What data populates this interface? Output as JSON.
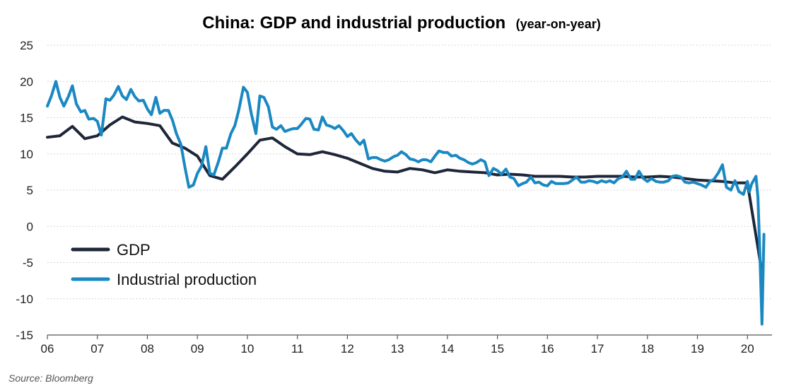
{
  "chart_data": {
    "type": "line",
    "title": "China: GDP and industrial production",
    "subtitle": "(year-on-year)",
    "source": "Source: Bloomberg",
    "xlim": [
      2006,
      2020.35
    ],
    "ylim": [
      -15,
      25
    ],
    "y_ticks": [
      25,
      20,
      15,
      10,
      5,
      0,
      -5,
      -10,
      -15
    ],
    "x_ticks": [
      {
        "label": "06",
        "value": 2006
      },
      {
        "label": "07",
        "value": 2007
      },
      {
        "label": "08",
        "value": 2008
      },
      {
        "label": "09",
        "value": 2009
      },
      {
        "label": "10",
        "value": 2010
      },
      {
        "label": "11",
        "value": 2011
      },
      {
        "label": "12",
        "value": 2012
      },
      {
        "label": "13",
        "value": 2013
      },
      {
        "label": "14",
        "value": 2014
      },
      {
        "label": "15",
        "value": 2015
      },
      {
        "label": "16",
        "value": 2016
      },
      {
        "label": "17",
        "value": 2017
      },
      {
        "label": "18",
        "value": 2018
      },
      {
        "label": "19",
        "value": 2019
      },
      {
        "label": "20",
        "value": 2020
      }
    ],
    "grid": "horizontal dotted",
    "legend_position": "bottom-left",
    "series": [
      {
        "name": "GDP",
        "color": "#1e2639",
        "points": [
          [
            2006.0,
            12.3
          ],
          [
            2006.25,
            12.5
          ],
          [
            2006.5,
            13.8
          ],
          [
            2006.75,
            12.1
          ],
          [
            2007.0,
            12.5
          ],
          [
            2007.25,
            14.0
          ],
          [
            2007.5,
            15.1
          ],
          [
            2007.75,
            14.4
          ],
          [
            2008.0,
            14.2
          ],
          [
            2008.25,
            13.9
          ],
          [
            2008.5,
            11.5
          ],
          [
            2008.75,
            10.8
          ],
          [
            2009.0,
            9.7
          ],
          [
            2009.25,
            7.0
          ],
          [
            2009.5,
            6.5
          ],
          [
            2009.75,
            8.2
          ],
          [
            2010.0,
            10.0
          ],
          [
            2010.25,
            11.9
          ],
          [
            2010.5,
            12.2
          ],
          [
            2010.75,
            11.0
          ],
          [
            2011.0,
            10.0
          ],
          [
            2011.25,
            9.9
          ],
          [
            2011.5,
            10.3
          ],
          [
            2011.75,
            9.9
          ],
          [
            2012.0,
            9.4
          ],
          [
            2012.25,
            8.7
          ],
          [
            2012.5,
            8.0
          ],
          [
            2012.75,
            7.6
          ],
          [
            2013.0,
            7.5
          ],
          [
            2013.25,
            8.0
          ],
          [
            2013.5,
            7.8
          ],
          [
            2013.75,
            7.4
          ],
          [
            2014.0,
            7.8
          ],
          [
            2014.25,
            7.6
          ],
          [
            2014.5,
            7.5
          ],
          [
            2014.75,
            7.4
          ],
          [
            2015.0,
            7.1
          ],
          [
            2015.25,
            7.2
          ],
          [
            2015.5,
            7.1
          ],
          [
            2015.75,
            6.9
          ],
          [
            2016.0,
            6.9
          ],
          [
            2016.25,
            6.9
          ],
          [
            2016.5,
            6.8
          ],
          [
            2016.75,
            6.8
          ],
          [
            2017.0,
            6.9
          ],
          [
            2017.25,
            6.9
          ],
          [
            2017.5,
            6.9
          ],
          [
            2017.75,
            6.8
          ],
          [
            2018.0,
            6.8
          ],
          [
            2018.25,
            6.9
          ],
          [
            2018.5,
            6.8
          ],
          [
            2018.75,
            6.6
          ],
          [
            2019.0,
            6.4
          ],
          [
            2019.25,
            6.3
          ],
          [
            2019.5,
            6.2
          ],
          [
            2019.75,
            6.0
          ],
          [
            2020.0,
            6.0
          ],
          [
            2020.3,
            -6.8
          ]
        ]
      },
      {
        "name": "Industrial production",
        "color": "#1a88c2",
        "points": [
          [
            2006.0,
            16.6
          ],
          [
            2006.08,
            18.0
          ],
          [
            2006.17,
            20.0
          ],
          [
            2006.25,
            17.8
          ],
          [
            2006.33,
            16.6
          ],
          [
            2006.42,
            17.9
          ],
          [
            2006.5,
            19.4
          ],
          [
            2006.58,
            16.9
          ],
          [
            2006.67,
            15.8
          ],
          [
            2006.75,
            16.0
          ],
          [
            2006.83,
            14.8
          ],
          [
            2006.92,
            14.9
          ],
          [
            2007.0,
            14.5
          ],
          [
            2007.08,
            12.6
          ],
          [
            2007.17,
            17.6
          ],
          [
            2007.25,
            17.4
          ],
          [
            2007.33,
            18.1
          ],
          [
            2007.42,
            19.3
          ],
          [
            2007.5,
            18.0
          ],
          [
            2007.58,
            17.5
          ],
          [
            2007.67,
            18.9
          ],
          [
            2007.75,
            17.9
          ],
          [
            2007.83,
            17.3
          ],
          [
            2007.92,
            17.4
          ],
          [
            2008.0,
            16.2
          ],
          [
            2008.08,
            15.4
          ],
          [
            2008.17,
            17.8
          ],
          [
            2008.25,
            15.6
          ],
          [
            2008.33,
            16.0
          ],
          [
            2008.42,
            16.0
          ],
          [
            2008.5,
            14.7
          ],
          [
            2008.58,
            12.8
          ],
          [
            2008.67,
            11.3
          ],
          [
            2008.75,
            8.2
          ],
          [
            2008.83,
            5.4
          ],
          [
            2008.92,
            5.7
          ],
          [
            2009.0,
            7.3
          ],
          [
            2009.08,
            8.3
          ],
          [
            2009.17,
            11.0
          ],
          [
            2009.25,
            7.3
          ],
          [
            2009.33,
            7.1
          ],
          [
            2009.42,
            8.9
          ],
          [
            2009.5,
            10.8
          ],
          [
            2009.58,
            10.8
          ],
          [
            2009.67,
            12.8
          ],
          [
            2009.75,
            13.9
          ],
          [
            2009.83,
            16.1
          ],
          [
            2009.92,
            19.2
          ],
          [
            2010.0,
            18.5
          ],
          [
            2010.08,
            15.5
          ],
          [
            2010.17,
            12.8
          ],
          [
            2010.25,
            18.0
          ],
          [
            2010.33,
            17.8
          ],
          [
            2010.42,
            16.5
          ],
          [
            2010.5,
            13.7
          ],
          [
            2010.58,
            13.4
          ],
          [
            2010.67,
            13.9
          ],
          [
            2010.75,
            13.1
          ],
          [
            2010.83,
            13.3
          ],
          [
            2010.92,
            13.5
          ],
          [
            2011.0,
            13.5
          ],
          [
            2011.08,
            14.1
          ],
          [
            2011.17,
            14.9
          ],
          [
            2011.25,
            14.8
          ],
          [
            2011.33,
            13.4
          ],
          [
            2011.42,
            13.3
          ],
          [
            2011.5,
            15.1
          ],
          [
            2011.58,
            14.0
          ],
          [
            2011.67,
            13.8
          ],
          [
            2011.75,
            13.5
          ],
          [
            2011.83,
            13.9
          ],
          [
            2011.92,
            13.2
          ],
          [
            2012.0,
            12.4
          ],
          [
            2012.08,
            12.8
          ],
          [
            2012.17,
            11.9
          ],
          [
            2012.25,
            11.3
          ],
          [
            2012.33,
            11.9
          ],
          [
            2012.42,
            9.3
          ],
          [
            2012.5,
            9.5
          ],
          [
            2012.58,
            9.5
          ],
          [
            2012.67,
            9.2
          ],
          [
            2012.75,
            9.0
          ],
          [
            2012.83,
            9.2
          ],
          [
            2012.92,
            9.6
          ],
          [
            2013.0,
            9.8
          ],
          [
            2013.08,
            10.3
          ],
          [
            2013.17,
            9.9
          ],
          [
            2013.25,
            9.3
          ],
          [
            2013.33,
            9.2
          ],
          [
            2013.42,
            8.9
          ],
          [
            2013.5,
            9.2
          ],
          [
            2013.58,
            9.2
          ],
          [
            2013.67,
            8.9
          ],
          [
            2013.75,
            9.7
          ],
          [
            2013.83,
            10.4
          ],
          [
            2013.92,
            10.2
          ],
          [
            2014.0,
            10.2
          ],
          [
            2014.08,
            9.7
          ],
          [
            2014.17,
            9.8
          ],
          [
            2014.25,
            9.4
          ],
          [
            2014.33,
            9.2
          ],
          [
            2014.42,
            8.8
          ],
          [
            2014.5,
            8.6
          ],
          [
            2014.58,
            8.8
          ],
          [
            2014.67,
            9.2
          ],
          [
            2014.75,
            8.9
          ],
          [
            2014.83,
            7.0
          ],
          [
            2014.92,
            8.0
          ],
          [
            2015.0,
            7.7
          ],
          [
            2015.08,
            7.2
          ],
          [
            2015.17,
            7.9
          ],
          [
            2015.25,
            6.8
          ],
          [
            2015.33,
            6.6
          ],
          [
            2015.42,
            5.6
          ],
          [
            2015.5,
            5.9
          ],
          [
            2015.58,
            6.1
          ],
          [
            2015.67,
            6.8
          ],
          [
            2015.75,
            6.0
          ],
          [
            2015.83,
            6.1
          ],
          [
            2015.92,
            5.7
          ],
          [
            2016.0,
            5.6
          ],
          [
            2016.08,
            6.2
          ],
          [
            2016.17,
            5.9
          ],
          [
            2016.25,
            5.9
          ],
          [
            2016.33,
            5.9
          ],
          [
            2016.42,
            6.0
          ],
          [
            2016.5,
            6.4
          ],
          [
            2016.58,
            6.8
          ],
          [
            2016.67,
            6.1
          ],
          [
            2016.75,
            6.1
          ],
          [
            2016.83,
            6.3
          ],
          [
            2016.92,
            6.2
          ],
          [
            2017.0,
            6.0
          ],
          [
            2017.08,
            6.3
          ],
          [
            2017.17,
            6.1
          ],
          [
            2017.25,
            6.3
          ],
          [
            2017.33,
            6.0
          ],
          [
            2017.42,
            6.6
          ],
          [
            2017.5,
            6.8
          ],
          [
            2017.58,
            7.6
          ],
          [
            2017.67,
            6.5
          ],
          [
            2017.75,
            6.5
          ],
          [
            2017.83,
            7.6
          ],
          [
            2017.92,
            6.6
          ],
          [
            2018.0,
            6.2
          ],
          [
            2018.08,
            6.6
          ],
          [
            2018.17,
            6.2
          ],
          [
            2018.25,
            6.1
          ],
          [
            2018.33,
            6.1
          ],
          [
            2018.42,
            6.3
          ],
          [
            2018.5,
            6.9
          ],
          [
            2018.58,
            7.0
          ],
          [
            2018.67,
            6.8
          ],
          [
            2018.75,
            6.1
          ],
          [
            2018.83,
            6.0
          ],
          [
            2018.92,
            6.1
          ],
          [
            2019.0,
            5.9
          ],
          [
            2019.08,
            5.7
          ],
          [
            2019.17,
            5.4
          ],
          [
            2019.25,
            6.2
          ],
          [
            2019.33,
            6.5
          ],
          [
            2019.42,
            7.4
          ],
          [
            2019.5,
            8.5
          ],
          [
            2019.58,
            5.4
          ],
          [
            2019.67,
            5.0
          ],
          [
            2019.75,
            6.3
          ],
          [
            2019.83,
            4.8
          ],
          [
            2019.92,
            4.4
          ],
          [
            2020.0,
            6.2
          ],
          [
            2020.04,
            4.8
          ],
          [
            2020.08,
            5.8
          ],
          [
            2020.17,
            6.9
          ],
          [
            2020.21,
            4.0
          ],
          [
            2020.25,
            -4.0
          ],
          [
            2020.29,
            -13.5
          ],
          [
            2020.33,
            -1.1
          ]
        ]
      }
    ]
  }
}
